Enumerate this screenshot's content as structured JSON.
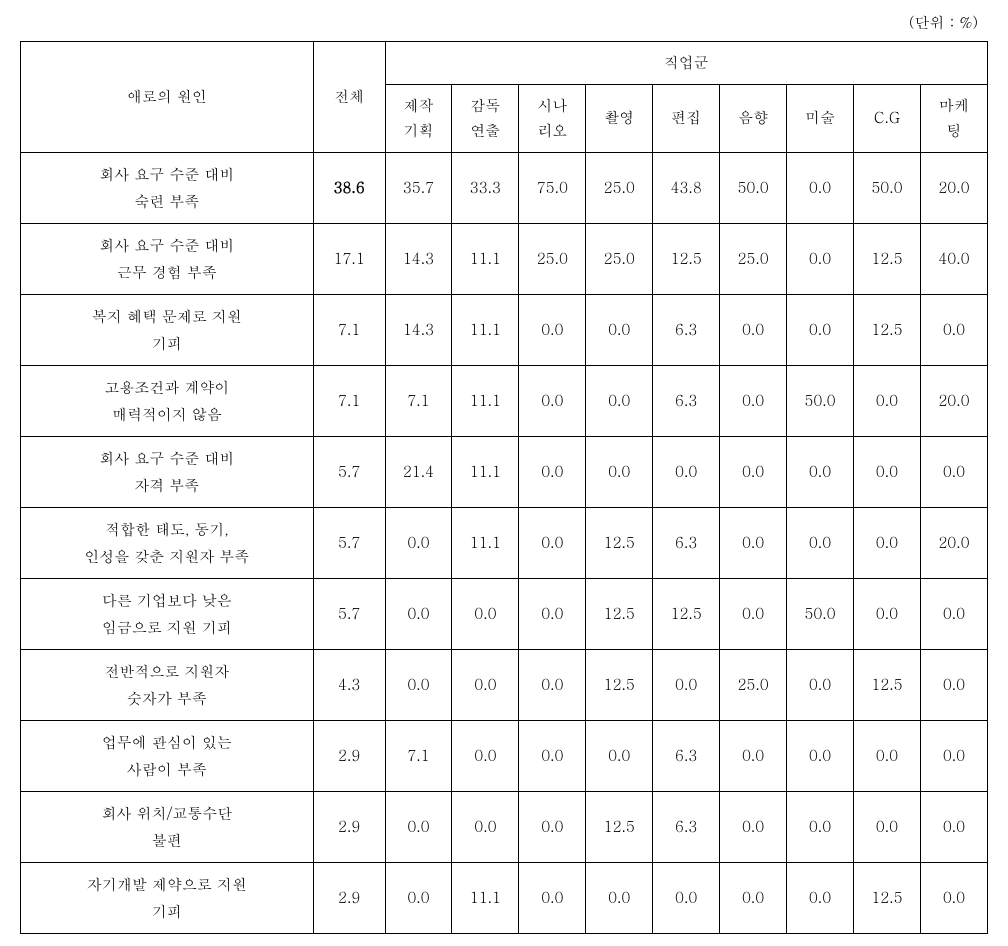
{
  "unit_label": "(단위 : %)",
  "header": {
    "cause": "애로의 원인",
    "total": "전체",
    "job_group": "직업군",
    "jobs": [
      "제작\n기획",
      "감독\n연출",
      "시나\n리오",
      "촬영",
      "편집",
      "음향",
      "미술",
      "C.G",
      "마케\n팅"
    ]
  },
  "rows": [
    {
      "label": "회사 요구 수준  대비\n숙련 부족",
      "total": "38.6",
      "total_bold": true,
      "values": [
        "35.7",
        "33.3",
        "75.0",
        "25.0",
        "43.8",
        "50.0",
        "0.0",
        "50.0",
        "20.0"
      ]
    },
    {
      "label": "회사 요구 수준  대비\n근무 경험 부족",
      "total": "17.1",
      "values": [
        "14.3",
        "11.1",
        "25.0",
        "25.0",
        "12.5",
        "25.0",
        "0.0",
        "12.5",
        "40.0"
      ]
    },
    {
      "label": "복지 혜택  문제로 지원\n기피",
      "total": "7.1",
      "values": [
        "14.3",
        "11.1",
        "0.0",
        "0.0",
        "6.3",
        "0.0",
        "0.0",
        "12.5",
        "0.0"
      ]
    },
    {
      "label": "고용조건과  계약이\n매력적이지 않음",
      "total": "7.1",
      "values": [
        "7.1",
        "11.1",
        "0.0",
        "0.0",
        "6.3",
        "0.0",
        "50.0",
        "0.0",
        "20.0"
      ]
    },
    {
      "label": "회사 요구 수준  대비\n자격 부족",
      "total": "5.7",
      "values": [
        "21.4",
        "11.1",
        "0.0",
        "0.0",
        "0.0",
        "0.0",
        "0.0",
        "0.0",
        "0.0"
      ]
    },
    {
      "label": "적합한 태도,  동기,\n인성을 갖춘 지원자 부족",
      "total": "5.7",
      "values": [
        "0.0",
        "11.1",
        "0.0",
        "12.5",
        "6.3",
        "0.0",
        "0.0",
        "0.0",
        "20.0"
      ]
    },
    {
      "label": "다른 기업보다  낮은\n임금으로 지원 기피",
      "total": "5.7",
      "values": [
        "0.0",
        "0.0",
        "0.0",
        "12.5",
        "12.5",
        "0.0",
        "50.0",
        "0.0",
        "0.0"
      ]
    },
    {
      "label": "전반적으로  지원자\n숫자가 부족",
      "total": "4.3",
      "values": [
        "0.0",
        "0.0",
        "0.0",
        "12.5",
        "0.0",
        "25.0",
        "0.0",
        "12.5",
        "0.0"
      ]
    },
    {
      "label": "업무에 관심이  있는\n사람이 부족",
      "total": "2.9",
      "values": [
        "7.1",
        "0.0",
        "0.0",
        "0.0",
        "6.3",
        "0.0",
        "0.0",
        "0.0",
        "0.0"
      ]
    },
    {
      "label": "회사  위치/교통수단\n불편",
      "total": "2.9",
      "values": [
        "0.0",
        "0.0",
        "0.0",
        "12.5",
        "6.3",
        "0.0",
        "0.0",
        "0.0",
        "0.0"
      ]
    },
    {
      "label": "자기개발  제약으로 지원\n기피",
      "total": "2.9",
      "values": [
        "0.0",
        "11.1",
        "0.0",
        "0.0",
        "0.0",
        "0.0",
        "0.0",
        "12.5",
        "0.0"
      ]
    }
  ],
  "styling": {
    "font_family": "Batang, serif",
    "font_size_pt": 11,
    "border_color": "#000000",
    "background_color": "#ffffff",
    "text_color": "#000000",
    "line_height": 1.7
  }
}
